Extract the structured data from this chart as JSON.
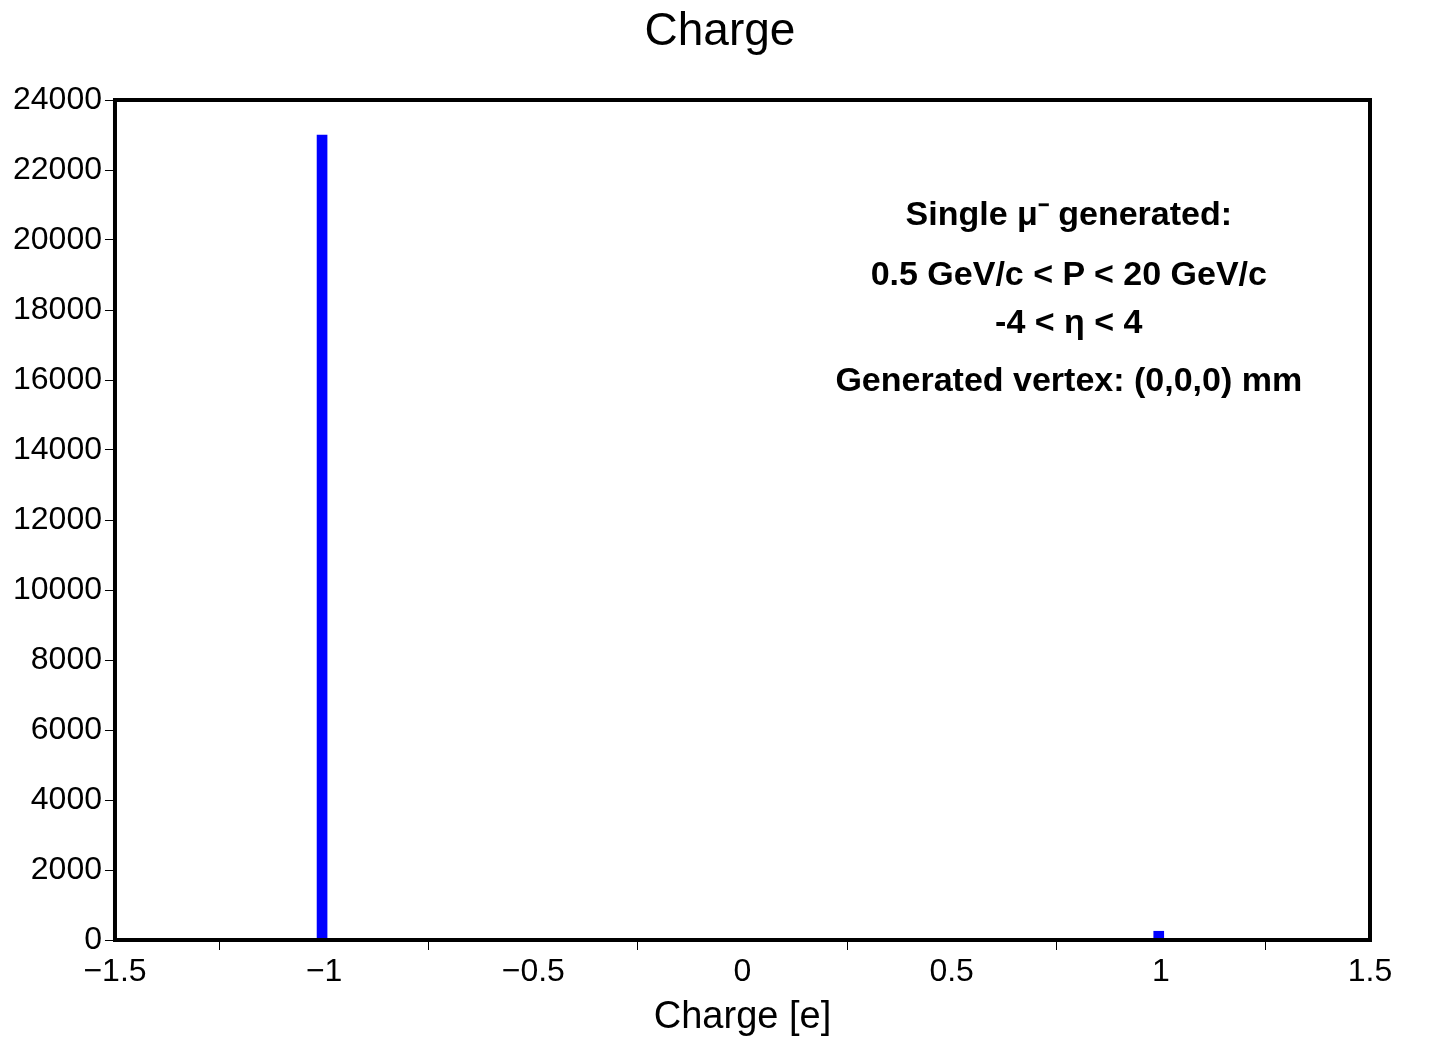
{
  "chart_data": {
    "type": "histogram",
    "title": "Charge",
    "xlabel": "Charge [e]",
    "bins": [
      -1.5,
      -1.02,
      -0.99,
      0.98,
      1.01,
      1.5
    ],
    "values": [
      0,
      23000,
      0,
      250,
      0
    ],
    "color": "#0000ff",
    "xlim": [
      -1.5,
      1.5
    ],
    "xticks": [
      {
        "value": -1.5,
        "label": "−1.5"
      },
      {
        "value": -1,
        "label": "−1"
      },
      {
        "value": -0.5,
        "label": "−0.5"
      },
      0,
      0.5,
      1,
      1.5
    ],
    "ylim": [
      0,
      24000
    ],
    "yticks": [
      0,
      2000,
      4000,
      6000,
      8000,
      10000,
      12000,
      14000,
      16000,
      18000,
      20000,
      22000,
      24000
    ],
    "grid": false,
    "annotations": [
      "Single μ⁻ generated:",
      "0.5 GeV/c < P < 20 GeV/c",
      "-4 < η < 4",
      "Generated vertex: (0,0,0) mm"
    ]
  }
}
